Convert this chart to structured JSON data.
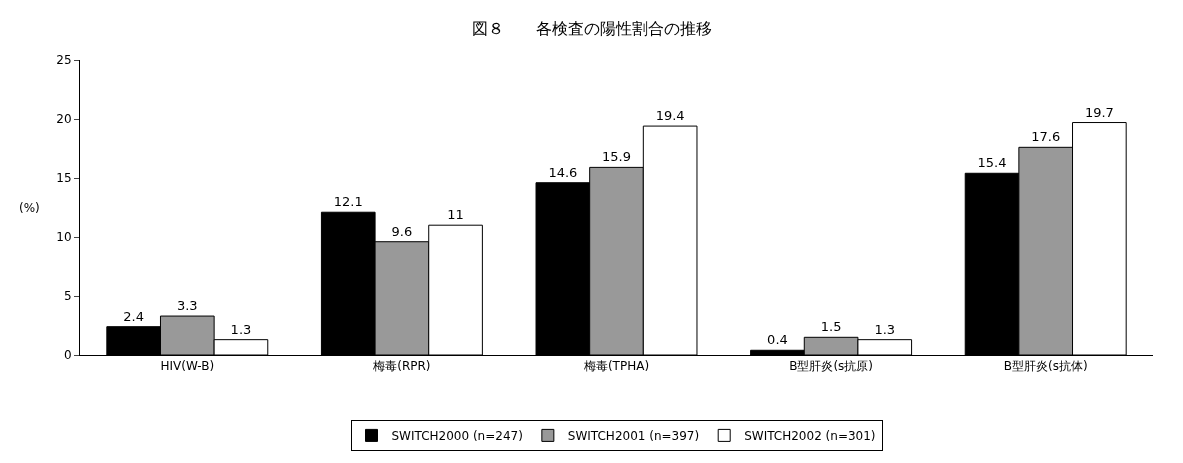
{
  "chart_data": {
    "type": "bar",
    "title": "図８　　各検査の陽性割合の推移",
    "ylabel": "(%)",
    "categories": [
      "HIV(W-B)",
      "梅毒(RPR)",
      "梅毒(TPHA)",
      "B型肝炎(s抗原)",
      "B型肝炎(s抗体)"
    ],
    "series": [
      {
        "name": "SWITCH2000 (n=247)",
        "color": "#000000",
        "values": [
          2.4,
          12.1,
          14.6,
          0.4,
          15.4
        ]
      },
      {
        "name": "SWITCH2001 (n=397)",
        "color": "#999999",
        "values": [
          3.3,
          9.6,
          15.9,
          1.5,
          17.6
        ]
      },
      {
        "name": "SWITCH2002 (n=301)",
        "color": "#ffffff",
        "values": [
          1.3,
          11,
          19.4,
          1.3,
          19.7
        ]
      }
    ],
    "ylim": [
      0,
      25
    ],
    "yticks": [
      0,
      5,
      10,
      15,
      20,
      25
    ],
    "data_labels": true,
    "legend": "bottom",
    "grid": false
  }
}
